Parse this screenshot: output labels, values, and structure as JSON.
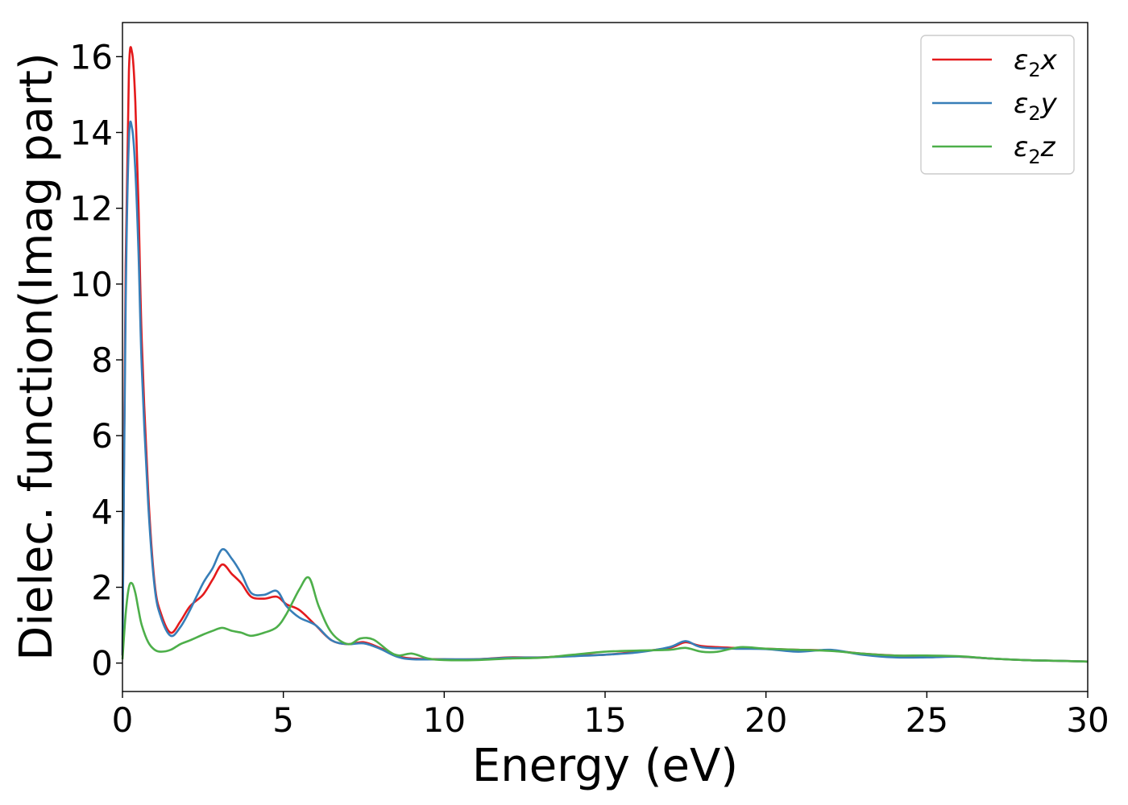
{
  "chart_data": {
    "type": "line",
    "title": "",
    "xlabel": "Energy (eV)",
    "ylabel": "Dielec. function(Imag part)",
    "xlim": [
      0,
      30
    ],
    "ylim": [
      -0.75,
      16.9
    ],
    "xticks": [
      0,
      5,
      10,
      15,
      20,
      25,
      30
    ],
    "yticks": [
      0,
      2,
      4,
      6,
      8,
      10,
      12,
      14,
      16
    ],
    "grid": false,
    "legend_position": "top-right",
    "series": [
      {
        "name": "ε₂x",
        "legend_main": "ε",
        "legend_sub": "2",
        "legend_suffix": "x",
        "color": "#e41a1c",
        "x": [
          0,
          0.1,
          0.2,
          0.3,
          0.4,
          0.5,
          0.6,
          0.8,
          1.0,
          1.2,
          1.5,
          1.8,
          2.1,
          2.5,
          2.8,
          3.1,
          3.4,
          3.7,
          4.0,
          4.4,
          4.8,
          5.1,
          5.5,
          6.0,
          6.5,
          7.0,
          7.5,
          8.0,
          8.5,
          9.0,
          10.0,
          11.0,
          12.0,
          13.0,
          14.0,
          15.0,
          16.0,
          17.0,
          17.5,
          18.0,
          19.0,
          20.0,
          21.0,
          22.0,
          23.0,
          24.0,
          25.0,
          26.0,
          27.0,
          28.0,
          29.0,
          30.0
        ],
        "values": [
          0.2,
          10.5,
          15.6,
          16.1,
          14.8,
          12.0,
          8.5,
          4.5,
          2.1,
          1.3,
          0.8,
          1.1,
          1.5,
          1.8,
          2.2,
          2.6,
          2.35,
          2.1,
          1.75,
          1.7,
          1.75,
          1.55,
          1.4,
          1.0,
          0.6,
          0.5,
          0.55,
          0.4,
          0.2,
          0.12,
          0.1,
          0.1,
          0.15,
          0.15,
          0.2,
          0.22,
          0.3,
          0.4,
          0.55,
          0.45,
          0.4,
          0.38,
          0.35,
          0.33,
          0.25,
          0.2,
          0.18,
          0.17,
          0.12,
          0.08,
          0.06,
          0.04
        ]
      },
      {
        "name": "ε₂y",
        "legend_main": "ε",
        "legend_sub": "2",
        "legend_suffix": "y",
        "color": "#377eb8",
        "x": [
          0,
          0.1,
          0.2,
          0.3,
          0.4,
          0.5,
          0.6,
          0.8,
          1.0,
          1.2,
          1.5,
          1.8,
          2.1,
          2.5,
          2.8,
          3.1,
          3.4,
          3.7,
          4.0,
          4.4,
          4.8,
          5.1,
          5.5,
          6.0,
          6.5,
          7.0,
          7.5,
          8.0,
          8.5,
          9.0,
          10.0,
          11.0,
          12.0,
          13.0,
          14.0,
          15.0,
          16.0,
          17.0,
          17.5,
          18.0,
          19.0,
          20.0,
          21.0,
          22.0,
          23.0,
          24.0,
          25.0,
          26.0,
          27.0,
          28.0,
          29.0,
          30.0
        ],
        "values": [
          0.2,
          9.5,
          13.8,
          14.1,
          13.0,
          10.8,
          7.8,
          4.2,
          2.0,
          1.2,
          0.72,
          0.95,
          1.4,
          2.1,
          2.5,
          3.0,
          2.75,
          2.35,
          1.85,
          1.8,
          1.9,
          1.5,
          1.2,
          1.0,
          0.6,
          0.5,
          0.52,
          0.38,
          0.18,
          0.1,
          0.1,
          0.1,
          0.14,
          0.15,
          0.18,
          0.22,
          0.28,
          0.42,
          0.58,
          0.42,
          0.38,
          0.37,
          0.3,
          0.35,
          0.22,
          0.15,
          0.15,
          0.17,
          0.12,
          0.08,
          0.06,
          0.04
        ]
      },
      {
        "name": "ε₂z",
        "legend_main": "ε",
        "legend_sub": "2",
        "legend_suffix": "z",
        "color": "#4daf4a",
        "x": [
          0,
          0.1,
          0.2,
          0.3,
          0.4,
          0.5,
          0.6,
          0.8,
          1.0,
          1.2,
          1.5,
          1.8,
          2.1,
          2.5,
          2.8,
          3.1,
          3.4,
          3.7,
          4.0,
          4.4,
          4.8,
          5.1,
          5.5,
          5.8,
          6.1,
          6.5,
          7.0,
          7.4,
          7.8,
          8.3,
          8.6,
          9.0,
          9.5,
          10.0,
          11.0,
          12.0,
          13.0,
          14.0,
          15.0,
          16.0,
          17.0,
          17.5,
          18.0,
          18.5,
          19.2,
          20.0,
          21.0,
          22.0,
          23.0,
          24.0,
          25.0,
          26.0,
          27.0,
          28.0,
          29.0,
          30.0
        ],
        "values": [
          0.1,
          1.3,
          2.0,
          2.1,
          1.85,
          1.4,
          1.0,
          0.55,
          0.35,
          0.3,
          0.35,
          0.5,
          0.6,
          0.75,
          0.85,
          0.93,
          0.85,
          0.8,
          0.72,
          0.8,
          0.95,
          1.3,
          1.95,
          2.25,
          1.5,
          0.8,
          0.5,
          0.65,
          0.62,
          0.3,
          0.2,
          0.25,
          0.12,
          0.08,
          0.08,
          0.12,
          0.14,
          0.22,
          0.3,
          0.33,
          0.35,
          0.4,
          0.3,
          0.3,
          0.42,
          0.38,
          0.35,
          0.32,
          0.25,
          0.2,
          0.2,
          0.18,
          0.12,
          0.08,
          0.06,
          0.04
        ]
      }
    ]
  }
}
